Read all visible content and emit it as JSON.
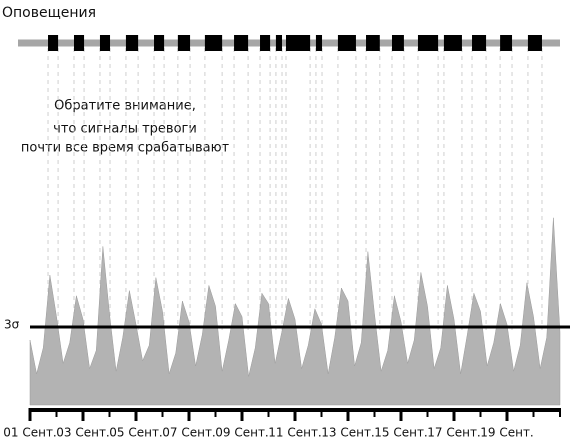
{
  "chart_data": {
    "type": "area",
    "title": "Оповещения",
    "annotation": [
      "Обратите внимание,",
      "что сигналы тревоги",
      "почти все время срабатывают"
    ],
    "color": "#b3b3b3",
    "x": [
      0,
      0.25,
      0.5,
      0.75,
      1,
      1.25,
      1.5,
      1.75,
      2,
      2.25,
      2.5,
      2.75,
      3,
      3.25,
      3.5,
      3.75,
      4,
      4.25,
      4.5,
      4.75,
      5,
      5.25,
      5.5,
      5.75,
      6,
      6.25,
      6.5,
      6.75,
      7,
      7.25,
      7.5,
      7.75,
      8,
      8.25,
      8.5,
      8.75,
      9,
      9.25,
      9.5,
      9.75,
      10,
      10.25,
      10.5,
      10.75,
      11,
      11.25,
      11.5,
      11.75,
      12,
      12.25,
      12.5,
      12.75,
      13,
      13.25,
      13.5,
      13.75,
      14,
      14.25,
      14.5,
      14.75,
      15,
      15.25,
      15.5,
      15.75,
      16,
      16.25,
      16.5,
      16.75,
      17,
      17.25,
      17.5,
      17.75,
      18,
      18.25,
      18.5,
      18.75,
      19,
      19.25,
      19.5,
      19.75,
      20
    ],
    "values": [
      2.5,
      1.2,
      2.2,
      5.0,
      3.4,
      1.6,
      2.4,
      4.2,
      3.3,
      1.4,
      2.1,
      6.1,
      3.5,
      1.3,
      2.6,
      4.4,
      3.1,
      1.7,
      2.3,
      4.9,
      3.6,
      1.2,
      2.0,
      4.0,
      3.2,
      1.5,
      2.7,
      4.6,
      3.8,
      1.3,
      2.5,
      3.9,
      3.4,
      1.1,
      2.2,
      4.3,
      3.9,
      1.6,
      2.8,
      4.1,
      3.3,
      1.4,
      2.3,
      3.7,
      3.1,
      1.2,
      2.6,
      4.5,
      4.0,
      1.5,
      2.4,
      5.9,
      3.5,
      1.3,
      2.1,
      4.2,
      3.2,
      1.6,
      2.5,
      5.1,
      3.8,
      1.4,
      2.2,
      4.6,
      3.3,
      1.2,
      2.7,
      4.3,
      3.6,
      1.5,
      2.4,
      3.9,
      3.1,
      1.3,
      2.3,
      4.7,
      3.4,
      1.4,
      2.6,
      7.2,
      2.8
    ],
    "xlim": [
      0,
      20
    ],
    "ylim": [
      0,
      7.5
    ],
    "xticks": [
      {
        "value": 0,
        "label": "01 Сент."
      },
      {
        "value": 2,
        "label": "03 Сент."
      },
      {
        "value": 4,
        "label": "05 Сент."
      },
      {
        "value": 6,
        "label": "07 Сент."
      },
      {
        "value": 8,
        "label": "09 Сент."
      },
      {
        "value": 10,
        "label": "11 Сент."
      },
      {
        "value": 12,
        "label": "13 Сент."
      },
      {
        "value": 14,
        "label": "15 Сент."
      },
      {
        "value": 16,
        "label": "17 Сент."
      },
      {
        "value": 18,
        "label": "19 Сент."
      }
    ],
    "xminorticks": [
      1,
      3,
      5,
      7,
      9,
      11,
      13,
      15,
      17,
      19,
      20
    ],
    "threshold": {
      "value": 3,
      "label": "3σ"
    },
    "alerts": [
      [
        0.68,
        1.06
      ],
      [
        1.66,
        2.04
      ],
      [
        2.64,
        3.02
      ],
      [
        3.62,
        4.08
      ],
      [
        4.68,
        5.06
      ],
      [
        5.58,
        6.04
      ],
      [
        6.6,
        7.25
      ],
      [
        7.7,
        8.23
      ],
      [
        8.68,
        9.06
      ],
      [
        9.28,
        9.51
      ],
      [
        9.66,
        10.57
      ],
      [
        10.79,
        11.02
      ],
      [
        11.62,
        12.3
      ],
      [
        12.68,
        13.2
      ],
      [
        13.66,
        14.11
      ],
      [
        14.64,
        15.4
      ],
      [
        15.62,
        16.3
      ],
      [
        16.68,
        17.21
      ],
      [
        17.74,
        18.19
      ],
      [
        18.79,
        19.32
      ]
    ]
  }
}
